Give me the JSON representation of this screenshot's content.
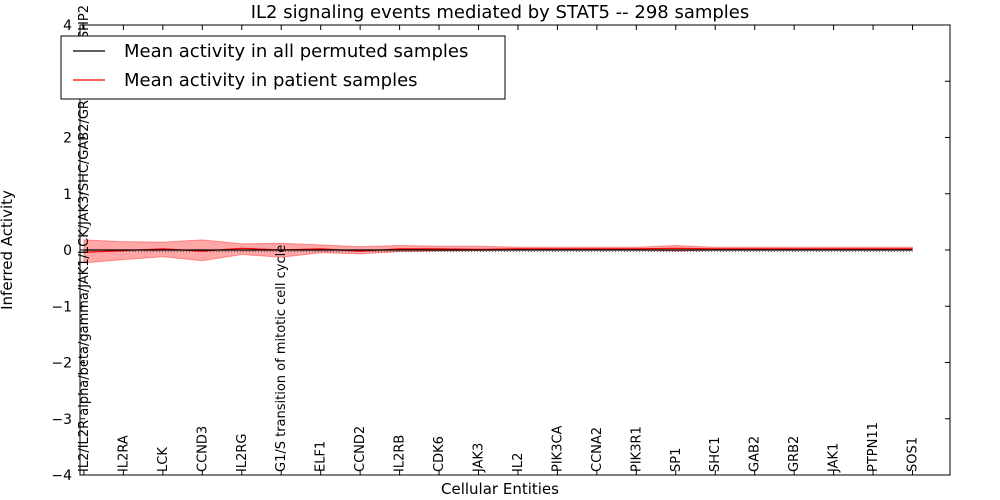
{
  "chart_data": {
    "type": "line",
    "title": "IL2 signaling events mediated by STAT5 -- 298 samples",
    "xlabel": "Cellular Entities",
    "ylabel": "Inferred Activity",
    "ylim": [
      -4,
      4
    ],
    "yticks": [
      4,
      3,
      2,
      1,
      0,
      -1,
      -2,
      -3,
      -4
    ],
    "ytick_labels": [
      "4",
      "3",
      "2",
      "1",
      "0",
      "−1",
      "−2",
      "−3",
      "−4"
    ],
    "grid": false,
    "legend_position": "top-left",
    "categories": [
      "IL2/IL2R alpha/beta/gamma/JAK1/LCK/JAK3/SHC/GAB2/GRB2/SOS1/SHP2",
      "IL2RA",
      "LCK",
      "CCND3",
      "IL2RG",
      "G1/S transition of mitotic cell cycle",
      "ELF1",
      "CCND2",
      "IL2RB",
      "CDK6",
      "JAK3",
      "IL2",
      "PIK3CA",
      "CCNA2",
      "PIK3R1",
      "SP1",
      "SHC1",
      "GAB2",
      "GRB2",
      "JAK1",
      "PTPN11",
      "SOS1"
    ],
    "series": [
      {
        "name": "Mean activity in all permuted samples",
        "color": "#000000",
        "values": [
          0,
          0,
          0,
          0,
          0,
          0,
          0,
          0,
          0,
          0,
          0,
          0,
          0,
          0,
          0,
          0,
          0,
          0,
          0,
          0,
          0,
          0
        ]
      },
      {
        "name": "Mean activity in patient samples",
        "color": "#ff0000",
        "values": [
          -0.04,
          -0.01,
          0.02,
          -0.02,
          0.03,
          0.0,
          0.02,
          -0.02,
          0.02,
          0.02,
          0.01,
          0.02,
          0.02,
          0.02,
          0.02,
          0.03,
          0.02,
          0.02,
          0.02,
          0.02,
          0.02,
          0.02
        ],
        "band_upper": [
          0.18,
          0.15,
          0.14,
          0.18,
          0.11,
          0.12,
          0.09,
          0.06,
          0.08,
          0.07,
          0.07,
          0.05,
          0.05,
          0.05,
          0.05,
          0.08,
          0.05,
          0.05,
          0.05,
          0.05,
          0.05,
          0.05
        ],
        "band_lower": [
          -0.23,
          -0.17,
          -0.12,
          -0.19,
          -0.08,
          -0.13,
          -0.05,
          -0.07,
          -0.03,
          -0.02,
          -0.01,
          0.0,
          0.0,
          0.0,
          0.0,
          -0.02,
          0.0,
          0.0,
          0.0,
          0.0,
          0.0,
          0.0
        ]
      }
    ]
  }
}
